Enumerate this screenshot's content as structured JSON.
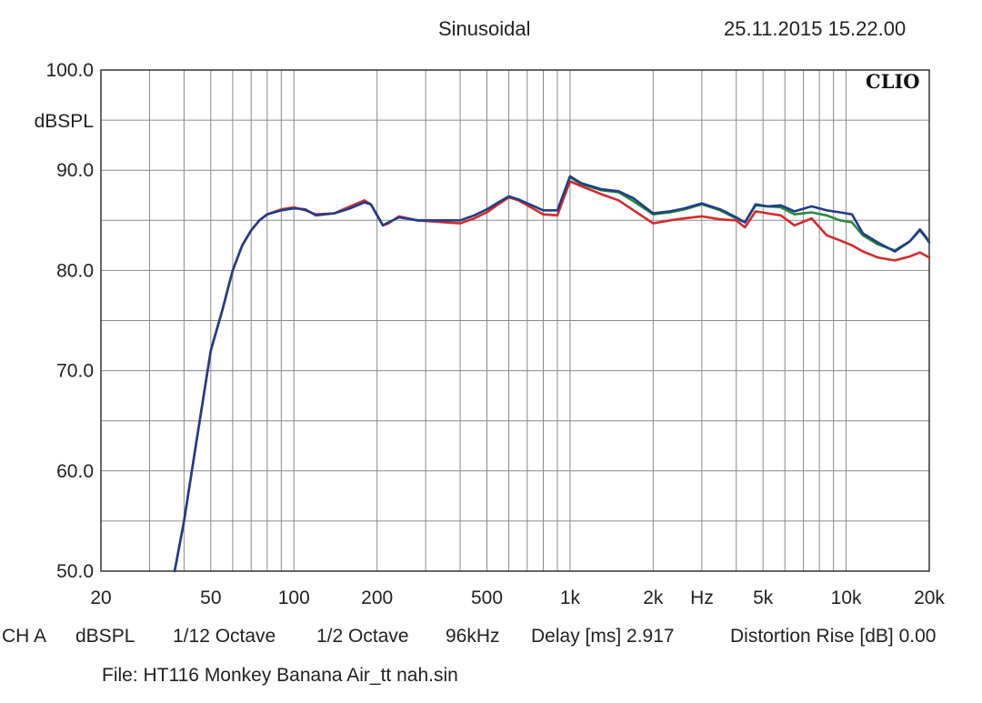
{
  "header": {
    "title": "Sinusoidal",
    "timestamp": "25.11.2015 15.22.00",
    "logo": "CLIO"
  },
  "footer": {
    "channel": "CH A",
    "unit": "dBSPL",
    "smoothing": "1/12 Octave",
    "window": "1/2 Octave",
    "sample_rate": "96kHz",
    "delay": "Delay [ms] 2.917",
    "distortion": "Distortion Rise [dB] 0.00",
    "file": "File: HT116 Monkey Banana Air_tt nah.sin"
  },
  "chart_data": {
    "type": "line",
    "title": "Sinusoidal",
    "xlabel": "Hz",
    "ylabel": "dBSPL",
    "xscale": "log",
    "xlim": [
      20,
      20000
    ],
    "ylim": [
      50,
      100
    ],
    "grid": true,
    "x_tick_labels": [
      {
        "value": 20,
        "label": "20"
      },
      {
        "value": 50,
        "label": "50"
      },
      {
        "value": 100,
        "label": "100"
      },
      {
        "value": 200,
        "label": "200"
      },
      {
        "value": 500,
        "label": "500"
      },
      {
        "value": 1000,
        "label": "1k"
      },
      {
        "value": 2000,
        "label": "2k"
      },
      {
        "value": 5000,
        "label": "5k"
      },
      {
        "value": 10000,
        "label": "10k"
      },
      {
        "value": 20000,
        "label": "20k"
      }
    ],
    "y_tick_labels": [
      {
        "value": 100,
        "label": "100.0"
      },
      {
        "value": 90,
        "label": "90.0"
      },
      {
        "value": 80,
        "label": "80.0"
      },
      {
        "value": 70,
        "label": "70.0"
      },
      {
        "value": 60,
        "label": "60.0"
      },
      {
        "value": 50,
        "label": "50.0"
      }
    ],
    "series": [
      {
        "color": "#2a8a3a",
        "points": [
          [
            1000,
            89.3
          ],
          [
            1100,
            88.6
          ],
          [
            1300,
            88.0
          ],
          [
            1500,
            87.8
          ],
          [
            1700,
            86.9
          ],
          [
            2000,
            85.6
          ],
          [
            2300,
            85.8
          ],
          [
            2600,
            86.1
          ],
          [
            3000,
            86.6
          ],
          [
            3500,
            86.0
          ],
          [
            4000,
            85.2
          ],
          [
            4300,
            84.8
          ],
          [
            4700,
            86.5
          ],
          [
            5200,
            86.4
          ],
          [
            5800,
            86.3
          ],
          [
            6500,
            85.6
          ],
          [
            7500,
            85.8
          ],
          [
            8500,
            85.5
          ],
          [
            9500,
            85.0
          ],
          [
            10500,
            84.8
          ],
          [
            11500,
            83.5
          ],
          [
            13000,
            82.6
          ],
          [
            15000,
            82.0
          ],
          [
            17000,
            82.9
          ],
          [
            18500,
            84.0
          ],
          [
            19500,
            83.2
          ],
          [
            20000,
            82.8
          ]
        ]
      },
      {
        "color": "#d42a2a",
        "points": [
          [
            37,
            50.0
          ],
          [
            40,
            55.0
          ],
          [
            45,
            64.0
          ],
          [
            50,
            72.0
          ],
          [
            55,
            76.0
          ],
          [
            60,
            80.0
          ],
          [
            65,
            82.5
          ],
          [
            70,
            84.0
          ],
          [
            75,
            85.0
          ],
          [
            80,
            85.6
          ],
          [
            90,
            86.1
          ],
          [
            100,
            86.3
          ],
          [
            110,
            86.0
          ],
          [
            120,
            85.6
          ],
          [
            140,
            85.7
          ],
          [
            160,
            86.4
          ],
          [
            180,
            87.0
          ],
          [
            190,
            86.6
          ],
          [
            210,
            84.5
          ],
          [
            220,
            84.7
          ],
          [
            240,
            85.4
          ],
          [
            280,
            85.0
          ],
          [
            350,
            84.8
          ],
          [
            400,
            84.7
          ],
          [
            450,
            85.2
          ],
          [
            500,
            85.8
          ],
          [
            550,
            86.6
          ],
          [
            600,
            87.3
          ],
          [
            650,
            87.0
          ],
          [
            700,
            86.5
          ],
          [
            800,
            85.6
          ],
          [
            900,
            85.5
          ],
          [
            1000,
            88.9
          ],
          [
            1100,
            88.4
          ],
          [
            1300,
            87.6
          ],
          [
            1500,
            87.0
          ],
          [
            1700,
            86.0
          ],
          [
            2000,
            84.7
          ],
          [
            2300,
            85.0
          ],
          [
            2600,
            85.2
          ],
          [
            3000,
            85.4
          ],
          [
            3500,
            85.1
          ],
          [
            4000,
            85.0
          ],
          [
            4300,
            84.3
          ],
          [
            4700,
            85.9
          ],
          [
            5200,
            85.7
          ],
          [
            5800,
            85.5
          ],
          [
            6500,
            84.5
          ],
          [
            7500,
            85.2
          ],
          [
            8500,
            83.5
          ],
          [
            9500,
            83.0
          ],
          [
            10500,
            82.5
          ],
          [
            11500,
            81.9
          ],
          [
            13000,
            81.3
          ],
          [
            15000,
            81.0
          ],
          [
            17000,
            81.4
          ],
          [
            18500,
            81.8
          ],
          [
            20000,
            81.3
          ]
        ]
      },
      {
        "color": "#1f3d8a",
        "points": [
          [
            37,
            50.0
          ],
          [
            40,
            55.0
          ],
          [
            45,
            64.0
          ],
          [
            50,
            72.0
          ],
          [
            55,
            76.0
          ],
          [
            60,
            80.0
          ],
          [
            65,
            82.5
          ],
          [
            70,
            84.0
          ],
          [
            75,
            85.0
          ],
          [
            80,
            85.6
          ],
          [
            90,
            86.0
          ],
          [
            100,
            86.2
          ],
          [
            110,
            86.1
          ],
          [
            120,
            85.5
          ],
          [
            140,
            85.7
          ],
          [
            160,
            86.2
          ],
          [
            180,
            86.8
          ],
          [
            190,
            86.6
          ],
          [
            210,
            84.5
          ],
          [
            220,
            84.8
          ],
          [
            240,
            85.3
          ],
          [
            280,
            85.0
          ],
          [
            350,
            85.0
          ],
          [
            400,
            85.0
          ],
          [
            450,
            85.5
          ],
          [
            500,
            86.1
          ],
          [
            550,
            86.8
          ],
          [
            600,
            87.4
          ],
          [
            650,
            87.1
          ],
          [
            700,
            86.7
          ],
          [
            800,
            86.0
          ],
          [
            900,
            86.0
          ],
          [
            1000,
            89.4
          ],
          [
            1100,
            88.7
          ],
          [
            1300,
            88.1
          ],
          [
            1500,
            87.9
          ],
          [
            1700,
            87.2
          ],
          [
            2000,
            85.7
          ],
          [
            2300,
            85.9
          ],
          [
            2600,
            86.2
          ],
          [
            3000,
            86.7
          ],
          [
            3500,
            86.1
          ],
          [
            4000,
            85.3
          ],
          [
            4300,
            84.8
          ],
          [
            4700,
            86.6
          ],
          [
            5200,
            86.4
          ],
          [
            5800,
            86.5
          ],
          [
            6500,
            85.9
          ],
          [
            7500,
            86.4
          ],
          [
            8500,
            86.0
          ],
          [
            9500,
            85.8
          ],
          [
            10500,
            85.6
          ],
          [
            11500,
            83.7
          ],
          [
            13000,
            82.8
          ],
          [
            15000,
            81.9
          ],
          [
            17000,
            82.9
          ],
          [
            18500,
            84.1
          ],
          [
            19500,
            83.3
          ],
          [
            20000,
            82.8
          ]
        ]
      }
    ]
  }
}
